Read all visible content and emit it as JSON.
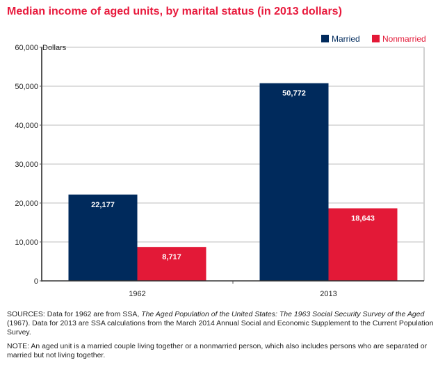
{
  "chart_data": {
    "type": "bar",
    "title": "Median income of aged units, by marital status (in 2013 dollars)",
    "xlabel": "",
    "ylabel": "Dollars",
    "ylim": [
      0,
      60000
    ],
    "yticks": [
      0,
      10000,
      20000,
      30000,
      40000,
      50000,
      60000
    ],
    "ytick_labels": [
      "0",
      "10,000",
      "20,000",
      "30,000",
      "40,000",
      "50,000",
      "60,000"
    ],
    "grid": true,
    "legend_position": "top-right",
    "categories": [
      "1962",
      "2013"
    ],
    "series": [
      {
        "name": "Married",
        "color": "#002a5c",
        "values": [
          22177,
          50772
        ],
        "labels": [
          "22,177",
          "50,772"
        ]
      },
      {
        "name": "Nonmarried",
        "color": "#e31937",
        "values": [
          8717,
          18643
        ],
        "labels": [
          "8,717",
          "18,643"
        ]
      }
    ]
  },
  "title_color": "#e8193c",
  "notes": {
    "sources_prefix": "SOURCES: Data for 1962 are from SSA, ",
    "sources_italic_1": "The Aged Population of the United States: The 1963 Social Security Survey of the Aged",
    "sources_suffix": " (1967). Data for 2013 are SSA calculations from the March 2014 Annual Social and Economic Supplement to the Current Population Survey.",
    "note": "NOTE: An aged unit is a married couple living together or a nonmarried person, which also includes persons who are separated or married but not living together."
  }
}
